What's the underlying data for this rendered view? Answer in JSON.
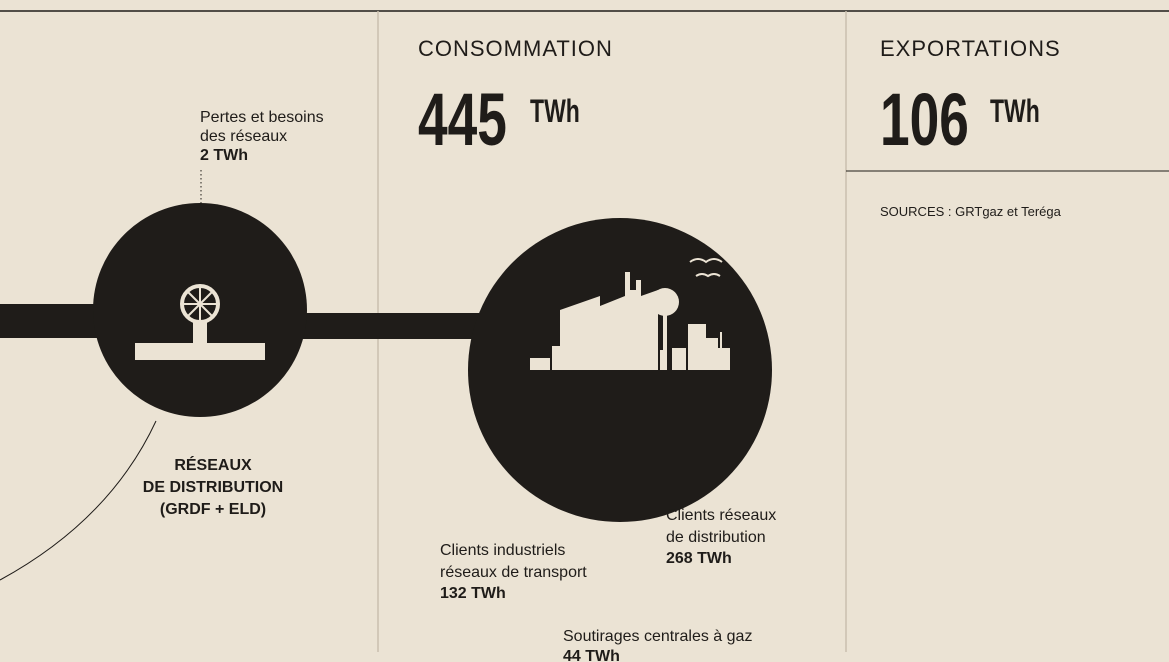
{
  "losses": {
    "label": [
      "Pertes et besoins",
      "des réseaux"
    ],
    "value": "2 TWh"
  },
  "distribution": {
    "label": [
      "RÉSEAUX",
      "DE DISTRIBUTION",
      "(GRDF + ELD)"
    ]
  },
  "consumption": {
    "title": "CONSOMMATION",
    "value": "445",
    "unit": "TWh"
  },
  "exports": {
    "title": "EXPORTATIONS",
    "value": "106",
    "unit": "TWh",
    "source": "SOURCES : GRTgaz et Teréga"
  },
  "breakdown": [
    {
      "label": [
        "Clients réseaux",
        "de distribution"
      ],
      "value": "268 TWh"
    },
    {
      "label": [
        "Clients industriels",
        "réseaux de transport"
      ],
      "value": "132 TWh"
    },
    {
      "label": [
        "Soutirages centrales à gaz"
      ],
      "value": "44 TWh"
    }
  ]
}
